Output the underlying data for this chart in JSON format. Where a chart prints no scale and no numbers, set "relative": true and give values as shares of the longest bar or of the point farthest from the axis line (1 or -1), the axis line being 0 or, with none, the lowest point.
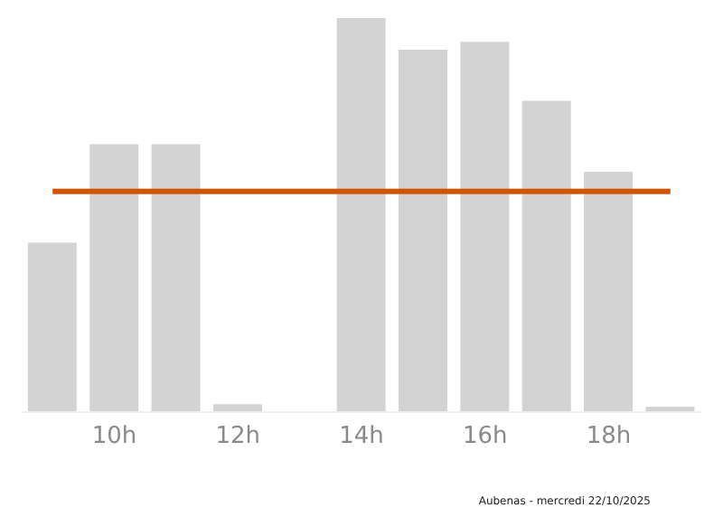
{
  "chart_data": {
    "type": "bar",
    "relative": true,
    "categories": [
      null,
      "10h",
      null,
      "12h",
      null,
      "14h",
      null,
      "16h",
      null,
      "18h",
      null
    ],
    "values": [
      0.43,
      0.68,
      0.68,
      0.02,
      0,
      1,
      0.92,
      0.94,
      0.79,
      0.61,
      0.014
    ],
    "color": "#d3d3d3",
    "ref_lines": [
      {
        "axis": "y",
        "value": 0.56,
        "color": "#d35400"
      }
    ],
    "annotations": [
      "Aubenas - mercredi 22/10/2025"
    ]
  }
}
